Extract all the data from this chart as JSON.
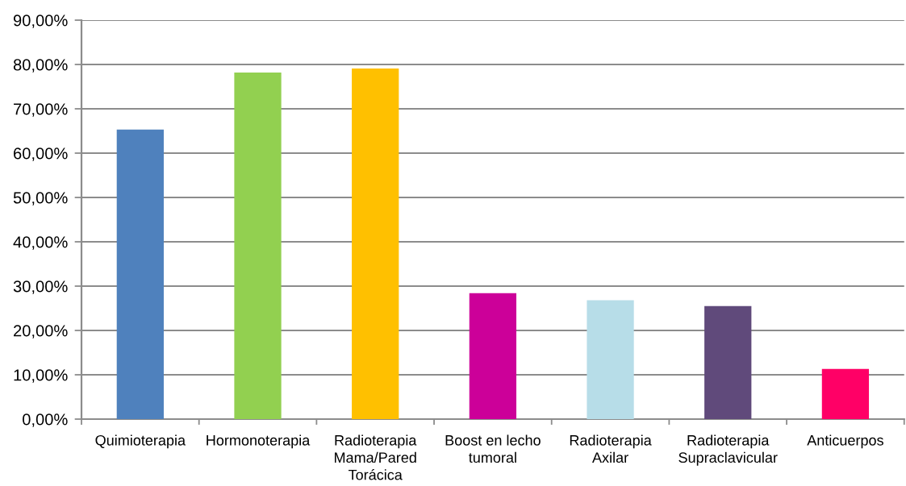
{
  "chart_data": {
    "type": "bar",
    "categories": [
      "Quimioterapia",
      "Hormonoterapia",
      "Radioterapia\nMama/Pared\nTorácica",
      "Boost en lecho\ntumoral",
      "Radioterapia\nAxilar",
      "Radioterapia\nSupraclavicular",
      "Anticuerpos"
    ],
    "values": [
      65.3,
      78.2,
      79.1,
      28.4,
      26.8,
      25.5,
      11.3
    ],
    "colors": [
      "#4f81bd",
      "#92d050",
      "#ffc000",
      "#cc0099",
      "#b7dde8",
      "#604a7b",
      "#ff0066"
    ],
    "ylim": [
      0,
      90
    ],
    "yticks": [
      {
        "value": 0,
        "label": "0,00%"
      },
      {
        "value": 10,
        "label": "10,00%"
      },
      {
        "value": 20,
        "label": "20,00%"
      },
      {
        "value": 30,
        "label": "30,00%"
      },
      {
        "value": 40,
        "label": "40,00%"
      },
      {
        "value": 50,
        "label": "50,00%"
      },
      {
        "value": 60,
        "label": "60,00%"
      },
      {
        "value": 70,
        "label": "70,00%"
      },
      {
        "value": 80,
        "label": "80,00%"
      },
      {
        "value": 90,
        "label": "90,00%"
      }
    ],
    "grid": "y",
    "legend": false
  }
}
